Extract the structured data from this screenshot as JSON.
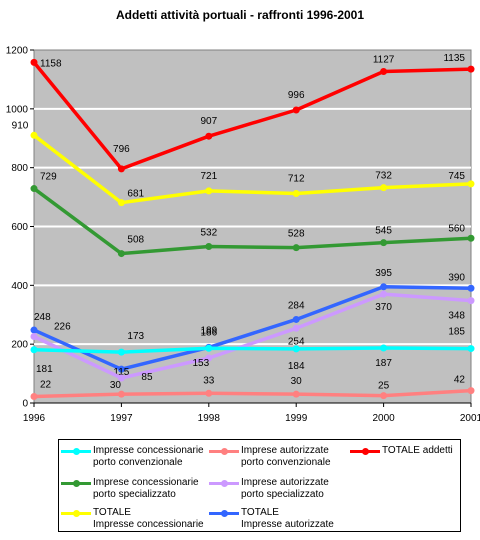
{
  "chart_data": {
    "type": "line",
    "title": "Addetti attività portuali - raffronti 1996-2001",
    "categories": [
      "1996",
      "1997",
      "1998",
      "1999",
      "2000",
      "2001"
    ],
    "ylim": [
      0,
      1200
    ],
    "yticks": [
      "0",
      "200",
      "400",
      "600",
      "800",
      "1000",
      "1200"
    ],
    "grid": true,
    "legend_position": "bottom",
    "series": [
      {
        "name": "TOTALE addetti",
        "legend_lines": [
          "TOTALE addetti"
        ],
        "color": "#ff0000",
        "values": [
          1158,
          796,
          907,
          996,
          1127,
          1135
        ]
      },
      {
        "name": "TOTALE Impresse concessionarie",
        "legend_lines": [
          "TOTALE",
          "Impresse concessionarie"
        ],
        "color": "#ffff00",
        "values": [
          910,
          681,
          721,
          712,
          732,
          745
        ]
      },
      {
        "name": "Imprese concessionarie porto specializzato",
        "legend_lines": [
          "Imprese concessionarie",
          "porto specializzato"
        ],
        "color": "#339933",
        "values": [
          729,
          508,
          532,
          528,
          545,
          560
        ]
      },
      {
        "name": "TOTALE Impresse autorizzate",
        "legend_lines": [
          "TOTALE",
          "Impresse autorizzate"
        ],
        "color": "#3366ff",
        "values": [
          248,
          115,
          189,
          284,
          395,
          390
        ]
      },
      {
        "name": "Imprese autorizzate porto specializzato",
        "legend_lines": [
          "Imprese autorizzate",
          "porto specializzato"
        ],
        "color": "#cc99ff",
        "values": [
          226,
          85,
          153,
          254,
          370,
          348
        ]
      },
      {
        "name": "Impresse concessionarie porto convenzionale",
        "legend_lines": [
          "Impresse concessionarie",
          "porto convenzionale"
        ],
        "color": "#00ffff",
        "values": [
          181,
          173,
          186,
          184,
          187,
          185
        ]
      },
      {
        "name": "Imprese autorizzate porto convenzionale",
        "legend_lines": [
          "Imprese autorizzate",
          "porto convenzionale"
        ],
        "color": "#ff8080",
        "values": [
          22,
          30,
          33,
          30,
          25,
          42
        ]
      }
    ]
  }
}
